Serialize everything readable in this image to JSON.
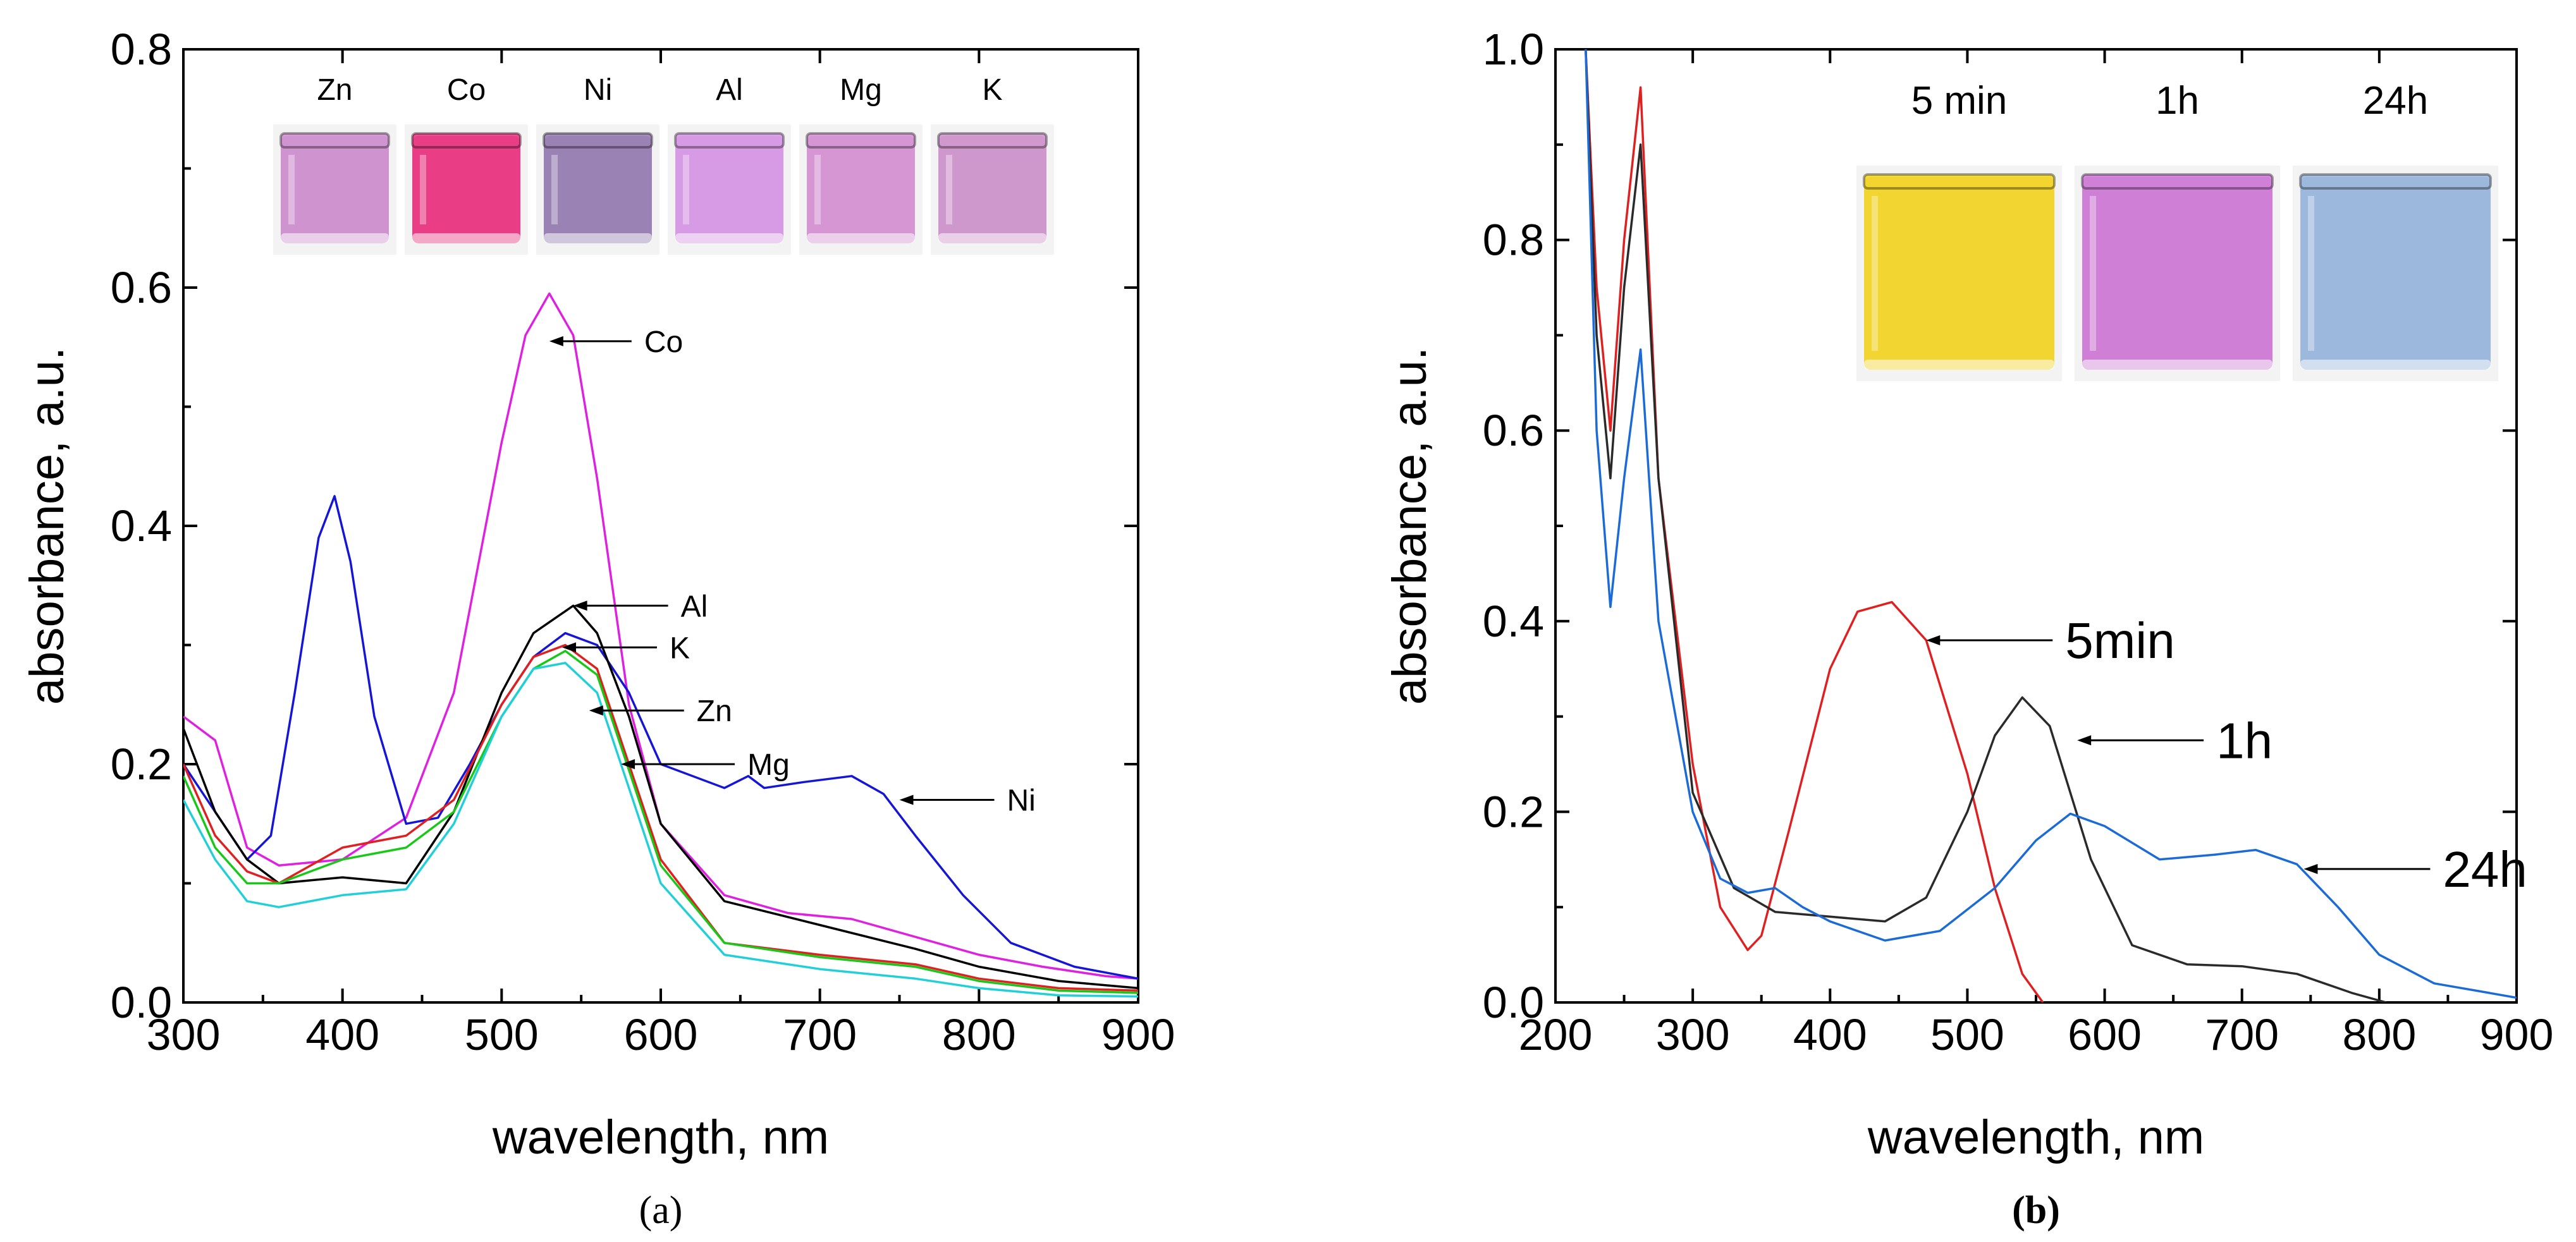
{
  "chart_data": [
    {
      "panel": "(a)",
      "type": "line",
      "xlabel": "wavelength, nm",
      "ylabel": "absorbance, a.u.",
      "xlim": [
        300,
        900
      ],
      "ylim": [
        0,
        0.8
      ],
      "xticks": [
        "300",
        "400",
        "500",
        "600",
        "700",
        "800",
        "900"
      ],
      "yticks": [
        "0.0",
        "0.2",
        "0.4",
        "0.6",
        "0.8"
      ],
      "inset_labels": [
        "Zn",
        "Co",
        "Ni",
        "Al",
        "Mg",
        "K"
      ],
      "inset_colors": [
        "#cf94d0",
        "#e93d86",
        "#9a83b4",
        "#d79ae4",
        "#d596d3",
        "#cf98cd"
      ],
      "series": [
        {
          "name": "Co",
          "color": "#e020e0",
          "x": [
            300,
            320,
            340,
            360,
            400,
            440,
            470,
            500,
            515,
            530,
            545,
            560,
            580,
            600,
            640,
            680,
            720,
            760,
            800,
            840,
            880,
            900
          ],
          "y": [
            0.24,
            0.22,
            0.13,
            0.115,
            0.12,
            0.155,
            0.26,
            0.47,
            0.56,
            0.595,
            0.56,
            0.44,
            0.25,
            0.15,
            0.09,
            0.075,
            0.07,
            0.055,
            0.04,
            0.03,
            0.022,
            0.02
          ]
        },
        {
          "name": "Ni",
          "color": "#1515d8",
          "x": [
            300,
            320,
            340,
            355,
            370,
            385,
            395,
            405,
            420,
            440,
            460,
            480,
            500,
            520,
            540,
            560,
            580,
            600,
            640,
            655,
            665,
            690,
            720,
            740,
            760,
            790,
            820,
            860,
            900
          ],
          "y": [
            0.2,
            0.16,
            0.12,
            0.14,
            0.26,
            0.39,
            0.425,
            0.37,
            0.24,
            0.15,
            0.155,
            0.2,
            0.25,
            0.29,
            0.31,
            0.3,
            0.26,
            0.2,
            0.18,
            0.19,
            0.18,
            0.185,
            0.19,
            0.175,
            0.14,
            0.09,
            0.05,
            0.03,
            0.02
          ]
        },
        {
          "name": "Al",
          "color": "#000000",
          "x": [
            300,
            320,
            340,
            360,
            400,
            440,
            470,
            500,
            520,
            545,
            560,
            580,
            600,
            640,
            700,
            760,
            800,
            850,
            900
          ],
          "y": [
            0.23,
            0.16,
            0.12,
            0.1,
            0.105,
            0.1,
            0.16,
            0.26,
            0.31,
            0.333,
            0.31,
            0.24,
            0.15,
            0.085,
            0.065,
            0.045,
            0.03,
            0.018,
            0.012
          ]
        },
        {
          "name": "K",
          "color": "#e02020",
          "x": [
            300,
            320,
            340,
            360,
            400,
            440,
            470,
            500,
            520,
            540,
            560,
            580,
            600,
            640,
            700,
            760,
            800,
            850,
            900
          ],
          "y": [
            0.2,
            0.14,
            0.11,
            0.1,
            0.13,
            0.14,
            0.17,
            0.25,
            0.29,
            0.3,
            0.28,
            0.2,
            0.12,
            0.05,
            0.04,
            0.032,
            0.02,
            0.012,
            0.01
          ]
        },
        {
          "name": "Zn",
          "color": "#18c818",
          "x": [
            300,
            320,
            340,
            360,
            400,
            440,
            470,
            500,
            520,
            540,
            560,
            580,
            600,
            640,
            700,
            760,
            800,
            850,
            900
          ],
          "y": [
            0.19,
            0.13,
            0.1,
            0.1,
            0.12,
            0.13,
            0.16,
            0.24,
            0.28,
            0.295,
            0.275,
            0.195,
            0.115,
            0.05,
            0.038,
            0.03,
            0.018,
            0.01,
            0.008
          ]
        },
        {
          "name": "Mg",
          "color": "#20d0d8",
          "x": [
            300,
            320,
            340,
            360,
            400,
            440,
            470,
            500,
            520,
            540,
            560,
            580,
            600,
            640,
            700,
            760,
            800,
            850,
            900
          ],
          "y": [
            0.17,
            0.12,
            0.085,
            0.08,
            0.09,
            0.095,
            0.15,
            0.24,
            0.28,
            0.285,
            0.26,
            0.18,
            0.1,
            0.04,
            0.028,
            0.02,
            0.012,
            0.006,
            0.005
          ]
        }
      ],
      "annotations": [
        {
          "label": "Co",
          "x": 530,
          "y": 0.555
        },
        {
          "label": "Al",
          "x": 545,
          "y": 0.333
        },
        {
          "label": "K",
          "x": 538,
          "y": 0.298
        },
        {
          "label": "Zn",
          "x": 555,
          "y": 0.245
        },
        {
          "label": "Mg",
          "x": 575,
          "y": 0.2
        },
        {
          "label": "Ni",
          "x": 750,
          "y": 0.17
        }
      ]
    },
    {
      "panel": "(b)",
      "type": "line",
      "xlabel": "wavelength, nm",
      "ylabel": "absorbance, a.u.",
      "xlim": [
        200,
        900
      ],
      "ylim": [
        0,
        1.0
      ],
      "xticks": [
        "200",
        "300",
        "400",
        "500",
        "600",
        "700",
        "800",
        "900"
      ],
      "yticks": [
        "0.0",
        "0.2",
        "0.4",
        "0.6",
        "0.8",
        "1.0"
      ],
      "inset_labels": [
        "5 min",
        "1h",
        "24h"
      ],
      "inset_colors": [
        "#f2d530",
        "#cf80d6",
        "#9cb8dc"
      ],
      "series": [
        {
          "name": "5min",
          "color": "#e02020",
          "x": [
            222,
            230,
            240,
            250,
            262,
            275,
            300,
            320,
            340,
            350,
            370,
            400,
            420,
            445,
            470,
            500,
            520,
            540,
            555
          ],
          "y": [
            1.0,
            0.75,
            0.6,
            0.8,
            0.96,
            0.55,
            0.25,
            0.1,
            0.055,
            0.07,
            0.18,
            0.35,
            0.41,
            0.42,
            0.38,
            0.24,
            0.12,
            0.03,
            0.0
          ]
        },
        {
          "name": "1h",
          "color": "#2a2a2a",
          "x": [
            222,
            230,
            240,
            250,
            262,
            275,
            300,
            330,
            360,
            400,
            440,
            470,
            500,
            520,
            540,
            560,
            590,
            620,
            660,
            700,
            740,
            780,
            805
          ],
          "y": [
            1.0,
            0.7,
            0.55,
            0.75,
            0.9,
            0.55,
            0.22,
            0.12,
            0.095,
            0.09,
            0.085,
            0.11,
            0.2,
            0.28,
            0.32,
            0.29,
            0.15,
            0.06,
            0.04,
            0.038,
            0.03,
            0.01,
            0.0
          ]
        },
        {
          "name": "24h",
          "color": "#1a6ad8",
          "x": [
            222,
            230,
            240,
            250,
            262,
            275,
            300,
            320,
            340,
            360,
            380,
            400,
            440,
            480,
            520,
            550,
            575,
            600,
            640,
            680,
            710,
            740,
            770,
            800,
            840,
            880,
            900
          ],
          "y": [
            1.0,
            0.6,
            0.415,
            0.55,
            0.685,
            0.4,
            0.2,
            0.13,
            0.115,
            0.12,
            0.1,
            0.085,
            0.065,
            0.075,
            0.12,
            0.17,
            0.198,
            0.185,
            0.15,
            0.155,
            0.16,
            0.145,
            0.1,
            0.05,
            0.02,
            0.01,
            0.005
          ]
        }
      ],
      "annotations": [
        {
          "label": "5min",
          "x": 470,
          "y": 0.38
        },
        {
          "label": "1h",
          "x": 580,
          "y": 0.275
        },
        {
          "label": "24h",
          "x": 745,
          "y": 0.14
        }
      ]
    }
  ]
}
